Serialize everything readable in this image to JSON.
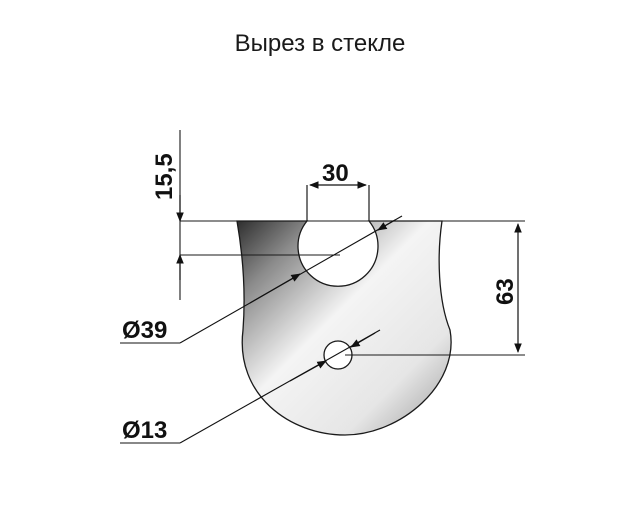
{
  "title": "Вырез в стекле",
  "dimensions": {
    "hole_top_offset": "15,5",
    "slot_width": "30",
    "depth": "63",
    "large_hole_diameter": "Ø39",
    "small_hole_diameter": "Ø13"
  },
  "colors": {
    "line": "#1a1a1a",
    "glass_light": "#ffffff",
    "glass_dark": "#3a3a3a"
  }
}
